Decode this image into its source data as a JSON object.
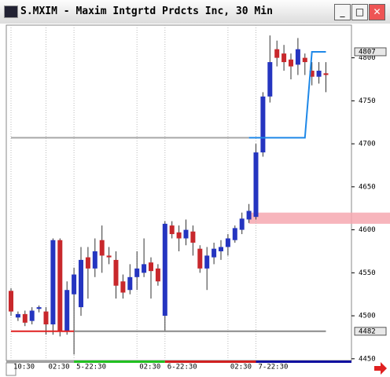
{
  "window_title": "S.MXIM - Maxim Intgrtd Prdcts Inc, 30 Min",
  "chart_data": {
    "type": "candlestick",
    "up_color": "#2535c0",
    "down_color": "#c8282c",
    "open": [
      4529,
      4498,
      4502,
      4494,
      4508,
      4505,
      4490,
      4588,
      4482,
      4525,
      4510,
      4568,
      4555,
      4588,
      4570,
      4565,
      4540,
      4530,
      4545,
      4550,
      4562,
      4555,
      4500,
      4605,
      4597,
      4590,
      4598,
      4578,
      4555,
      4568,
      4575,
      4580,
      4588,
      4600,
      4612,
      4615,
      4690,
      4755,
      4810,
      4805,
      4798,
      4792,
      4800,
      4785,
      4778,
      4782
    ],
    "high": [
      4532,
      4505,
      4506,
      4510,
      4512,
      4510,
      4590,
      4590,
      4540,
      4556,
      4580,
      4580,
      4590,
      4605,
      4580,
      4575,
      4548,
      4560,
      4575,
      4590,
      4568,
      4560,
      4610,
      4610,
      4605,
      4612,
      4605,
      4582,
      4580,
      4585,
      4588,
      4595,
      4605,
      4620,
      4630,
      4700,
      4760,
      4826,
      4820,
      4815,
      4805,
      4823,
      4805,
      4795,
      4795,
      4795
    ],
    "low": [
      4500,
      4494,
      4488,
      4490,
      4504,
      4478,
      4478,
      4476,
      4478,
      4455,
      4500,
      4520,
      4545,
      4550,
      4560,
      4520,
      4520,
      4525,
      4530,
      4545,
      4520,
      4535,
      4482,
      4590,
      4575,
      4582,
      4570,
      4550,
      4530,
      4560,
      4565,
      4570,
      4585,
      4595,
      4608,
      4612,
      4685,
      4748,
      4790,
      4785,
      4775,
      4780,
      4780,
      4768,
      4770,
      4760
    ],
    "close": [
      4505,
      4502,
      4492,
      4506,
      4510,
      4490,
      4588,
      4482,
      4530,
      4548,
      4565,
      4555,
      4575,
      4570,
      4568,
      4535,
      4527,
      4545,
      4555,
      4560,
      4552,
      4540,
      4607,
      4595,
      4590,
      4600,
      4585,
      4555,
      4570,
      4578,
      4580,
      4590,
      4602,
      4613,
      4622,
      4690,
      4755,
      4795,
      4800,
      4795,
      4790,
      4810,
      4795,
      4778,
      4785,
      4780
    ],
    "ylim": [
      4448,
      4838
    ],
    "yticks": [
      4450,
      4500,
      4550,
      4600,
      4650,
      4700,
      4750,
      4800
    ],
    "price_markers": [
      4807,
      4482
    ],
    "xticks": [
      {
        "value": 0,
        "label": "10:30"
      },
      {
        "value": 5,
        "label": "02:30"
      },
      {
        "value": 9,
        "label": "5-22:30"
      },
      {
        "value": 18,
        "label": "02:30"
      },
      {
        "value": 22,
        "label": "6-22:30"
      },
      {
        "value": 31,
        "label": "02:30"
      },
      {
        "value": 35,
        "label": "7-22:30"
      }
    ],
    "day_colors": [
      "#a0a0a0",
      "#20c020",
      "#d02020",
      "#1010a0"
    ],
    "lines": [
      {
        "color": "#a8a8a8",
        "points": [
          [
            0,
            4707
          ],
          [
            34,
            4707
          ]
        ]
      },
      {
        "color": "#1e88e8",
        "points": [
          [
            34,
            4707
          ],
          [
            42,
            4707
          ],
          [
            43,
            4807
          ],
          [
            45,
            4807
          ]
        ]
      },
      {
        "color": "#e02020",
        "points": [
          [
            0,
            4482
          ],
          [
            9,
            4482
          ]
        ]
      },
      {
        "color": "#888888",
        "points": [
          [
            9,
            4482
          ],
          [
            45,
            4482
          ]
        ]
      }
    ],
    "band": {
      "from": 4607,
      "to": 4620,
      "start": 34,
      "color": "#f6a8b0"
    }
  }
}
